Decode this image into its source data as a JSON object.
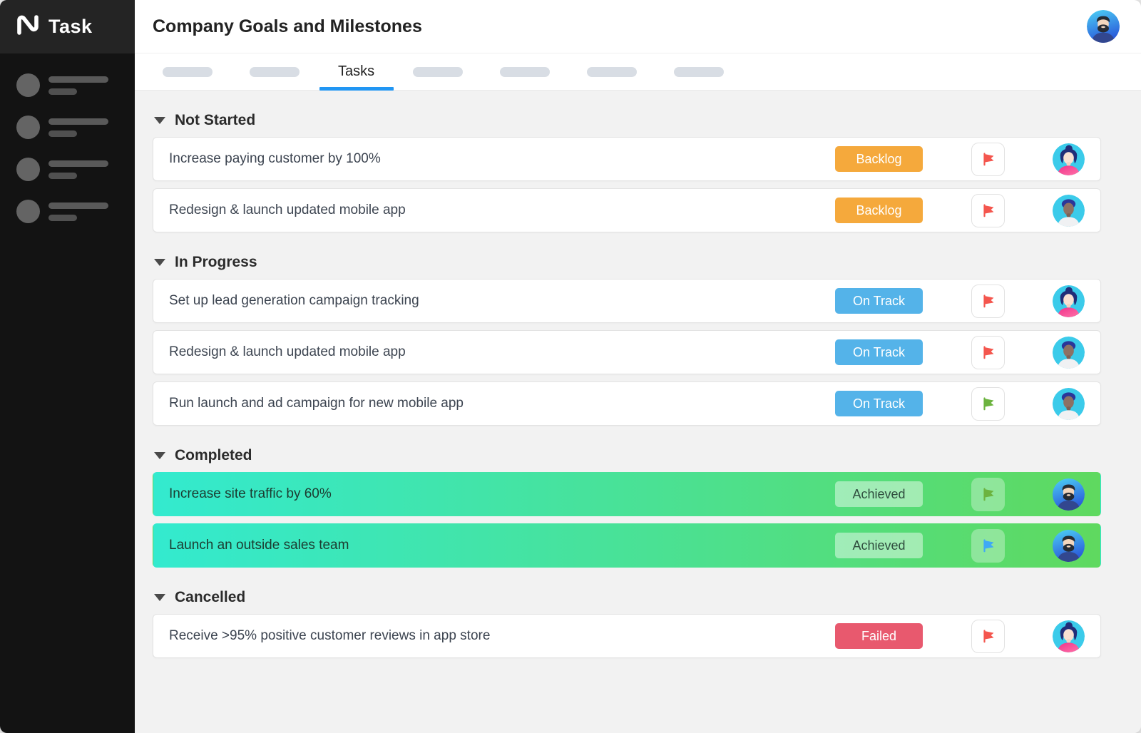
{
  "sidebar": {
    "logo_text": "Task"
  },
  "header": {
    "title": "Company Goals and Milestones"
  },
  "tabs": {
    "active": "Tasks"
  },
  "colors": {
    "accent_blue": "#2196F3",
    "sidebar_bg": "#131313",
    "content_bg": "#F2F2F2",
    "completed_row_gradient": [
      "#33EACF",
      "#5FD95F"
    ],
    "status_styles": {
      "Backlog": {
        "bg": "#F5A93C",
        "fg": "#FFFFFF"
      },
      "On Track": {
        "bg": "#54B3E9",
        "fg": "#FFFFFF"
      },
      "Achieved": {
        "bg": "rgba(255,255,255,0.45)",
        "fg": "#2F4D3E"
      },
      "Failed": {
        "bg": "#E8596E",
        "fg": "#FFFFFF"
      }
    },
    "flag_colors": {
      "red": "#F4564E",
      "green": "#6CB33F",
      "blue": "#3FA9F5"
    }
  },
  "sections": [
    {
      "name": "Not Started",
      "style": "card",
      "rows": [
        {
          "title": "Increase paying customer by 100%",
          "badge": "Backlog",
          "flag": "red",
          "avatar": "woman-pink"
        },
        {
          "title": "Redesign & launch updated mobile app",
          "badge": "Backlog",
          "flag": "red",
          "avatar": "man-white-shirt"
        }
      ]
    },
    {
      "name": "In Progress",
      "style": "card",
      "rows": [
        {
          "title": "Set up lead generation campaign tracking",
          "badge": "On Track",
          "flag": "red",
          "avatar": "woman-pink"
        },
        {
          "title": "Redesign & launch updated mobile app",
          "badge": "On Track",
          "flag": "red",
          "avatar": "man-white-shirt"
        },
        {
          "title": "Run launch and ad campaign for new mobile app",
          "badge": "On Track",
          "flag": "green",
          "avatar": "man-white-shirt"
        }
      ]
    },
    {
      "name": "Completed",
      "style": "completed",
      "rows": [
        {
          "title": "Increase site traffic by 60%",
          "badge": "Achieved",
          "flag": "green",
          "avatar": "man-beard"
        },
        {
          "title": "Launch an outside sales team",
          "badge": "Achieved",
          "flag": "blue",
          "avatar": "man-beard"
        }
      ]
    },
    {
      "name": "Cancelled",
      "style": "card",
      "rows": [
        {
          "title": "Receive >95% positive customer reviews in app store",
          "badge": "Failed",
          "flag": "red",
          "avatar": "woman-pink"
        }
      ]
    }
  ]
}
